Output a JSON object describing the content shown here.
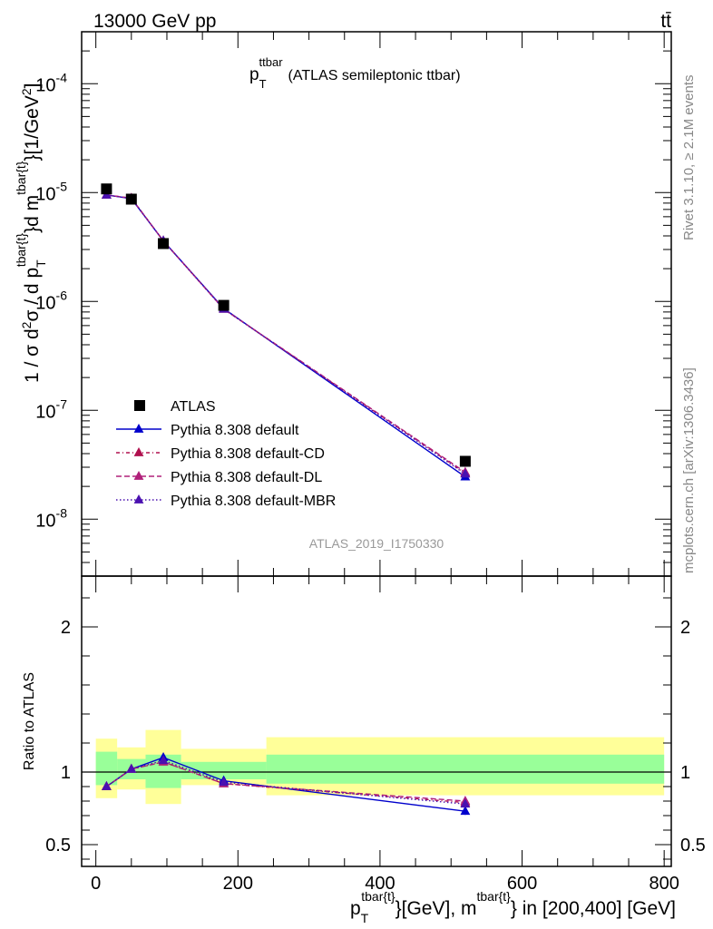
{
  "header": {
    "left": "13000 GeV pp",
    "right": "tt̄"
  },
  "side_labels": {
    "rivet": "Rivet 3.1.10, ≥ 2.1M events",
    "mcplots": "mcplots.cern.ch [arXiv:1306.3436]"
  },
  "chart_data": [
    {
      "type": "scatter",
      "panel": "main",
      "title": "p_T^ttbar (ATLAS semileptonic ttbar)",
      "title_main": "p",
      "title_sub": "T",
      "title_sup": "ttbar",
      "title_rest": "(ATLAS semileptonic ttbar)",
      "analysis_label": "ATLAS_2019_I1750330",
      "ylabel": "1 / σ d²σ / d p_T^{tbar{t}}d m^{tbar{t}}[1/GeV²]",
      "ylabel_parts": {
        "a": "1 / σ d",
        "a_sup": "2",
        "b": "σ / d p",
        "b_sub": "T",
        "b_sup": "tbar{t}",
        "c": "}d m",
        "c_sup": "tbar{t}",
        "d": "}[1/GeV",
        "d_sup": "2",
        "e": "]"
      },
      "y_scale": "log",
      "ylim": [
        3e-09,
        0.0003
      ],
      "xlim": [
        -20,
        810
      ],
      "y_tick_labels": [
        {
          "base": "10",
          "exp": "-8",
          "value": 1e-08
        },
        {
          "base": "10",
          "exp": "-7",
          "value": 1e-07
        },
        {
          "base": "10",
          "exp": "-6",
          "value": 1e-06
        },
        {
          "base": "10",
          "exp": "-5",
          "value": 1e-05
        },
        {
          "base": "10",
          "exp": "-4",
          "value": 0.0001
        }
      ],
      "legend_position": "bottom-left",
      "series": [
        {
          "name": "ATLAS",
          "marker": "square",
          "color": "#000000",
          "x": [
            15,
            50,
            95,
            180,
            520
          ],
          "y": [
            1.08e-05,
            8.7e-06,
            3.4e-06,
            9.2e-07,
            3.4e-08
          ]
        },
        {
          "name": "Pythia 8.308 default",
          "marker": "triangle",
          "line": "solid",
          "color": "#0000cc",
          "x": [
            15,
            50,
            95,
            180,
            520
          ],
          "y": [
            9.5e-06,
            8.8e-06,
            3.6e-06,
            8.6e-07,
            2.45e-08
          ]
        },
        {
          "name": "Pythia 8.308 default-CD",
          "marker": "triangle",
          "line": "dashdot",
          "color": "#b0104e",
          "x": [
            15,
            50,
            95,
            180,
            520
          ],
          "y": [
            9.5e-06,
            8.9e-06,
            3.6e-06,
            8.5e-07,
            2.65e-08
          ]
        },
        {
          "name": "Pythia 8.308 default-DL",
          "marker": "triangle",
          "line": "dashed",
          "color": "#b0207a",
          "x": [
            15,
            50,
            95,
            180,
            520
          ],
          "y": [
            9.5e-06,
            8.9e-06,
            3.6e-06,
            8.5e-07,
            2.7e-08
          ]
        },
        {
          "name": "Pythia 8.308 default-MBR",
          "marker": "triangle",
          "line": "dotted",
          "color": "#4a10b0",
          "x": [
            15,
            50,
            95,
            180,
            520
          ],
          "y": [
            9.5e-06,
            8.8e-06,
            3.6e-06,
            8.5e-07,
            2.6e-08
          ]
        }
      ]
    },
    {
      "type": "line",
      "panel": "ratio",
      "ylabel": "Ratio to ATLAS",
      "xlabel": "p_T^{tbar{t}}[GeV], m^{tbar{t}} in [200,400] [GeV]",
      "xlabel_parts": {
        "a": "p",
        "a_sub": "T",
        "a_sup": "tbar{t}",
        "b": "}[GeV], m",
        "b_sup": "tbar{t}",
        "c": "} in [200,400] [GeV]"
      },
      "xlim": [
        -20,
        810
      ],
      "ylim": [
        0.35,
        2.35
      ],
      "x_ticks": [
        0,
        200,
        400,
        600,
        800
      ],
      "y_ticks": [
        0.5,
        1,
        2
      ],
      "bands": [
        {
          "x0": 0,
          "x1": 30,
          "green": [
            0.91,
            1.14
          ],
          "yellow": [
            0.82,
            1.23
          ]
        },
        {
          "x0": 30,
          "x1": 70,
          "green": [
            0.95,
            1.09
          ],
          "yellow": [
            0.88,
            1.17
          ]
        },
        {
          "x0": 70,
          "x1": 120,
          "green": [
            0.89,
            1.12
          ],
          "yellow": [
            0.78,
            1.29
          ]
        },
        {
          "x0": 120,
          "x1": 240,
          "green": [
            0.95,
            1.07
          ],
          "yellow": [
            0.91,
            1.16
          ]
        },
        {
          "x0": 240,
          "x1": 800,
          "green": [
            0.92,
            1.12
          ],
          "yellow": [
            0.84,
            1.24
          ]
        }
      ],
      "series": [
        {
          "name": "Pythia 8.308 default",
          "color": "#0000cc",
          "line": "solid",
          "x": [
            15,
            50,
            95,
            180,
            520
          ],
          "y": [
            0.9,
            1.02,
            1.1,
            0.94,
            0.73
          ],
          "err": [
            0,
            0,
            0,
            0,
            0.025
          ]
        },
        {
          "name": "Pythia 8.308 default-CD",
          "color": "#b0104e",
          "line": "dashdot",
          "x": [
            15,
            50,
            95,
            180,
            520
          ],
          "y": [
            0.9,
            1.02,
            1.07,
            0.92,
            0.79
          ],
          "err": [
            0,
            0,
            0,
            0,
            0.025
          ]
        },
        {
          "name": "Pythia 8.308 default-DL",
          "color": "#b0207a",
          "line": "dashed",
          "x": [
            15,
            50,
            95,
            180,
            520
          ],
          "y": [
            0.9,
            1.02,
            1.07,
            0.92,
            0.8
          ],
          "err": [
            0,
            0,
            0,
            0,
            0.025
          ]
        },
        {
          "name": "Pythia 8.308 default-MBR",
          "color": "#4a10b0",
          "line": "dotted",
          "x": [
            15,
            50,
            95,
            180,
            520
          ],
          "y": [
            0.9,
            1.02,
            1.08,
            0.93,
            0.78
          ],
          "err": [
            0,
            0,
            0,
            0,
            0.025
          ]
        }
      ]
    }
  ]
}
